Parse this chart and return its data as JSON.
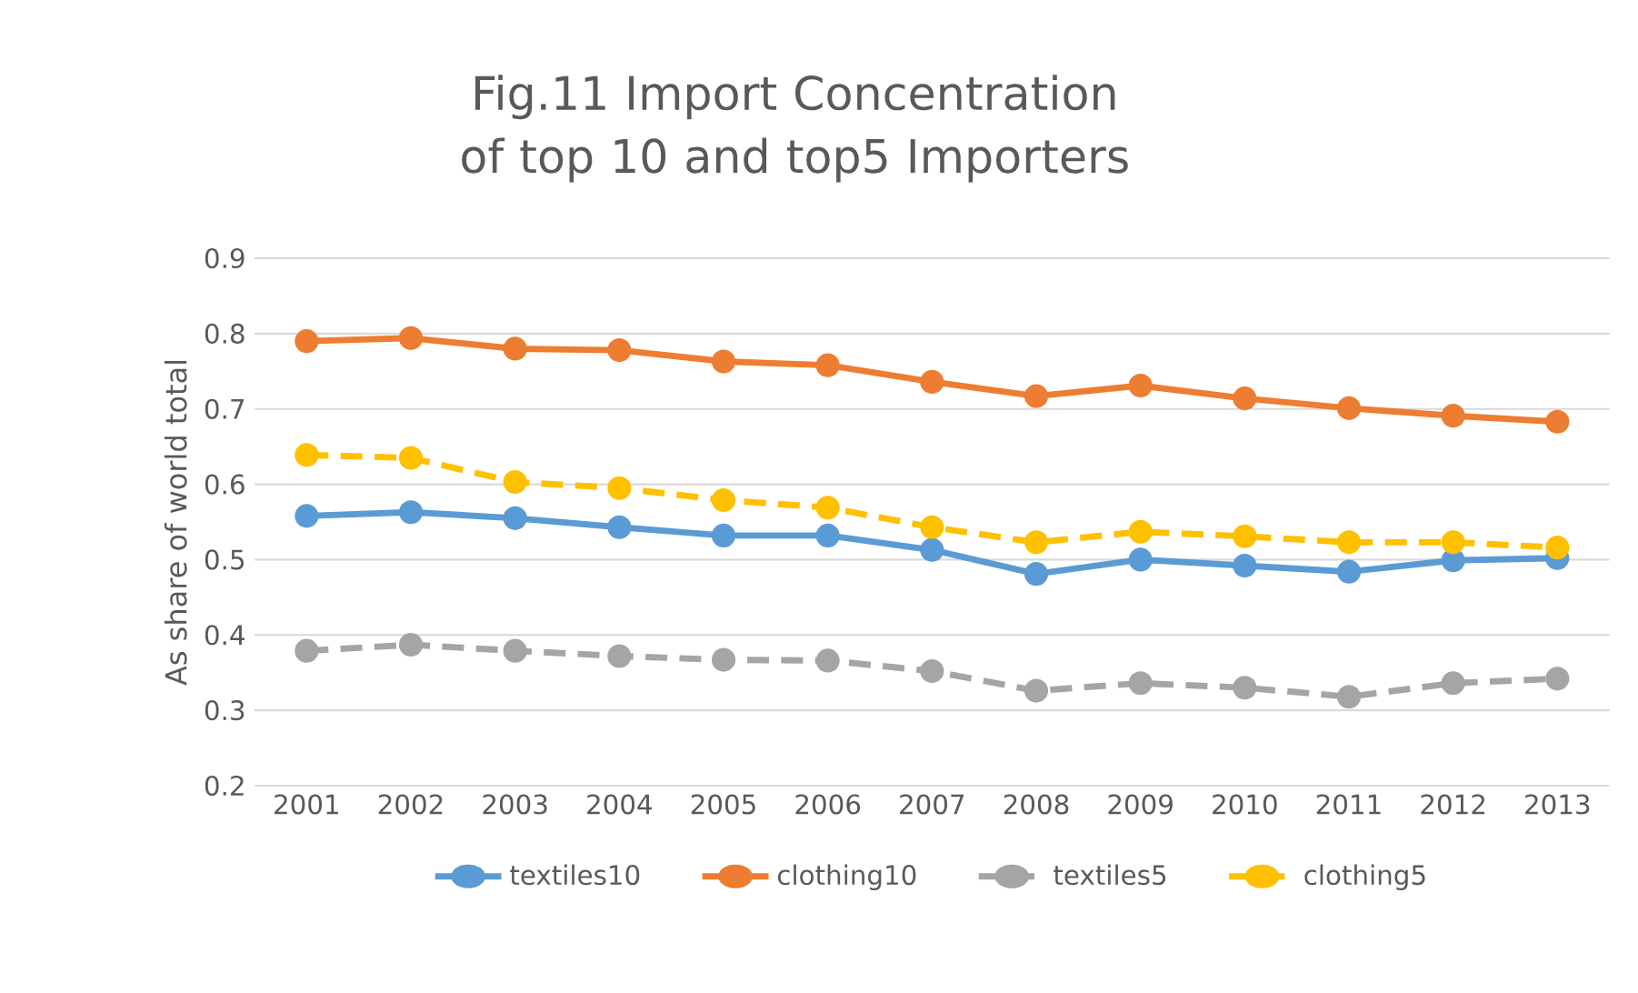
{
  "chart_data": {
    "type": "line",
    "title": "Fig.11 Import Concentration of top 10 and top5 Importers",
    "ylabel": "As share of world total",
    "categories": [
      "2001",
      "2002",
      "2003",
      "2004",
      "2005",
      "2006",
      "2007",
      "2008",
      "2009",
      "2010",
      "2011",
      "2012",
      "2013"
    ],
    "series": [
      {
        "name": "textiles10",
        "color": "#5b9bd5",
        "line_style": "solid",
        "values": [
          0.558,
          0.563,
          0.555,
          0.543,
          0.532,
          0.532,
          0.513,
          0.481,
          0.5,
          0.492,
          0.484,
          0.499,
          0.502
        ]
      },
      {
        "name": "clothing10",
        "color": "#ed7d31",
        "line_style": "solid",
        "values": [
          0.79,
          0.794,
          0.78,
          0.778,
          0.763,
          0.758,
          0.736,
          0.717,
          0.731,
          0.714,
          0.701,
          0.691,
          0.683
        ]
      },
      {
        "name": "textiles5",
        "color": "#a5a5a5",
        "line_style": "dashed",
        "values": [
          0.379,
          0.387,
          0.379,
          0.372,
          0.367,
          0.366,
          0.352,
          0.326,
          0.336,
          0.33,
          0.318,
          0.336,
          0.342
        ]
      },
      {
        "name": "clothing5",
        "color": "#ffc000",
        "line_style": "dashed",
        "values": [
          0.639,
          0.635,
          0.603,
          0.595,
          0.579,
          0.569,
          0.543,
          0.523,
          0.537,
          0.531,
          0.523,
          0.523,
          0.516
        ]
      }
    ],
    "ylim": [
      0.2,
      0.9
    ],
    "yticks": [
      0.2,
      0.3,
      0.4,
      0.5,
      0.6,
      0.7,
      0.8,
      0.9
    ],
    "grid": "y",
    "legend": "bottom",
    "marker": "circle"
  }
}
